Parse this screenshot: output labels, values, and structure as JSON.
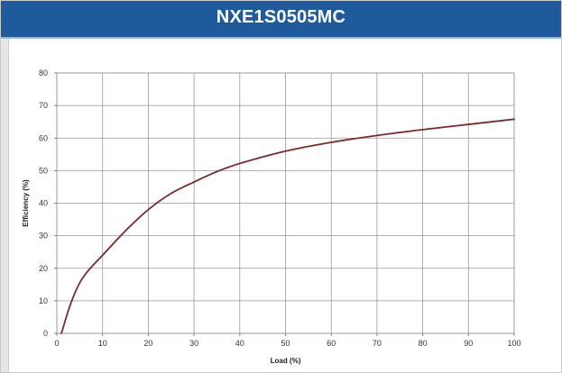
{
  "header": {
    "title": "NXE1S0505MC"
  },
  "colors": {
    "header_bg": "#1f5b9c",
    "curve": "#7a2a2a",
    "grid": "#999999"
  },
  "chart_data": {
    "type": "line",
    "title": "NXE1S0505MC",
    "xlabel": "Load  (%)",
    "ylabel": "Efficiency  (%)",
    "xlim": [
      0,
      100
    ],
    "ylim": [
      0,
      80
    ],
    "x_ticks": [
      0,
      10,
      20,
      30,
      40,
      50,
      60,
      70,
      80,
      90,
      100
    ],
    "y_ticks": [
      0,
      10,
      20,
      30,
      40,
      50,
      60,
      70,
      80
    ],
    "grid": true,
    "series": [
      {
        "x": [
          1,
          3,
          5,
          7,
          10,
          15,
          20,
          25,
          30,
          35,
          40,
          50,
          60,
          70,
          80,
          90,
          100
        ],
        "y": [
          0,
          9,
          15.5,
          19.5,
          24,
          31.5,
          38,
          43,
          46.5,
          49.7,
          52.2,
          56,
          58.7,
          60.8,
          62.6,
          64.2,
          65.8
        ]
      }
    ]
  }
}
